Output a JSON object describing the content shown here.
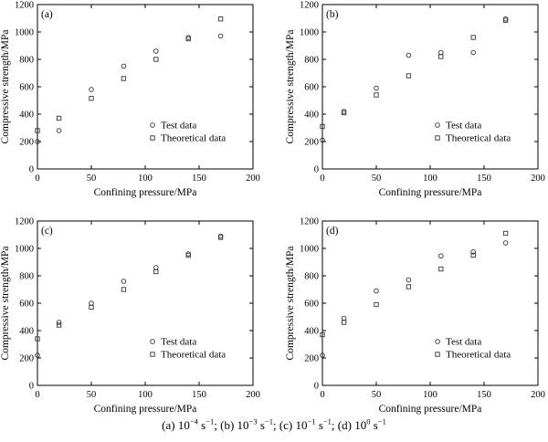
{
  "legend": {
    "test": "Test data",
    "theory": "Theoretical data"
  },
  "axes": {
    "xlabel": "Confining pressure/MPa",
    "ylabel": "Compressive strength/MPa"
  },
  "caption": [
    {
      "label": "(a)",
      "base": "10",
      "exp": "−4",
      "unit": " s",
      "unit_exp": "−1",
      "sep": ";"
    },
    {
      "label": "(b)",
      "base": "10",
      "exp": "−3",
      "unit": " s",
      "unit_exp": "−1",
      "sep": ";"
    },
    {
      "label": "(c)",
      "base": "10",
      "exp": "−1",
      "unit": " s",
      "unit_exp": "−1",
      "sep": ";"
    },
    {
      "label": "(d)",
      "base": "10",
      "exp": "0",
      "unit": " s",
      "unit_exp": "−1",
      "sep": ""
    }
  ],
  "chart_data": [
    {
      "type": "scatter",
      "panel_label": "(a)",
      "xlabel": "Confining pressure/MPa",
      "ylabel": "Compressive strength/MPa",
      "xlim": [
        0,
        200
      ],
      "ylim": [
        0,
        1200
      ],
      "xticks": [
        0,
        50,
        100,
        150,
        200
      ],
      "yticks": [
        0,
        200,
        400,
        600,
        800,
        1000,
        1200
      ],
      "legend_position": "center-right",
      "series": [
        {
          "name": "Test data",
          "marker": "circle",
          "x": [
            0,
            20,
            50,
            80,
            110,
            140,
            170
          ],
          "y": [
            200,
            280,
            580,
            750,
            860,
            960,
            970
          ]
        },
        {
          "name": "Theoretical data",
          "marker": "square",
          "x": [
            0,
            20,
            50,
            80,
            110,
            140,
            170
          ],
          "y": [
            280,
            370,
            515,
            660,
            800,
            950,
            1095
          ]
        }
      ]
    },
    {
      "type": "scatter",
      "panel_label": "(b)",
      "xlabel": "Confining pressure/MPa",
      "ylabel": "Compressive strength/MPa",
      "xlim": [
        0,
        200
      ],
      "ylim": [
        0,
        1200
      ],
      "xticks": [
        0,
        50,
        100,
        150,
        200
      ],
      "yticks": [
        0,
        200,
        400,
        600,
        800,
        1000,
        1200
      ],
      "legend_position": "center-right",
      "series": [
        {
          "name": "Test data",
          "marker": "circle",
          "x": [
            0,
            20,
            50,
            80,
            110,
            140,
            170
          ],
          "y": [
            210,
            420,
            590,
            830,
            850,
            850,
            1095
          ]
        },
        {
          "name": "Theoretical data",
          "marker": "square",
          "x": [
            0,
            20,
            50,
            80,
            110,
            140,
            170
          ],
          "y": [
            310,
            410,
            540,
            680,
            820,
            960,
            1085
          ]
        }
      ]
    },
    {
      "type": "scatter",
      "panel_label": "(c)",
      "xlabel": "Confining pressure/MPa",
      "ylabel": "Compressive strength/MPa",
      "xlim": [
        0,
        200
      ],
      "ylim": [
        0,
        1200
      ],
      "xticks": [
        0,
        50,
        100,
        150,
        200
      ],
      "yticks": [
        0,
        200,
        400,
        600,
        800,
        1000,
        1200
      ],
      "legend_position": "center-right",
      "series": [
        {
          "name": "Test data",
          "marker": "circle",
          "x": [
            0,
            20,
            50,
            80,
            110,
            140,
            170
          ],
          "y": [
            220,
            460,
            600,
            760,
            860,
            960,
            1090
          ]
        },
        {
          "name": "Theoretical data",
          "marker": "square",
          "x": [
            0,
            20,
            50,
            80,
            110,
            140,
            170
          ],
          "y": [
            340,
            440,
            570,
            700,
            830,
            950,
            1080
          ]
        }
      ]
    },
    {
      "type": "scatter",
      "panel_label": "(d)",
      "xlabel": "Confining pressure/MPa",
      "ylabel": "Compressive strength/MPa",
      "xlim": [
        0,
        200
      ],
      "ylim": [
        0,
        1200
      ],
      "xticks": [
        0,
        50,
        100,
        150,
        200
      ],
      "yticks": [
        0,
        200,
        400,
        600,
        800,
        1000,
        1200
      ],
      "legend_position": "center-right",
      "series": [
        {
          "name": "Test data",
          "marker": "circle",
          "x": [
            0,
            20,
            50,
            80,
            110,
            140,
            170
          ],
          "y": [
            220,
            490,
            690,
            770,
            945,
            975,
            1040
          ]
        },
        {
          "name": "Theoretical data",
          "marker": "square",
          "x": [
            0,
            20,
            50,
            80,
            110,
            140,
            170
          ],
          "y": [
            370,
            460,
            590,
            720,
            850,
            950,
            1110
          ]
        }
      ]
    }
  ]
}
